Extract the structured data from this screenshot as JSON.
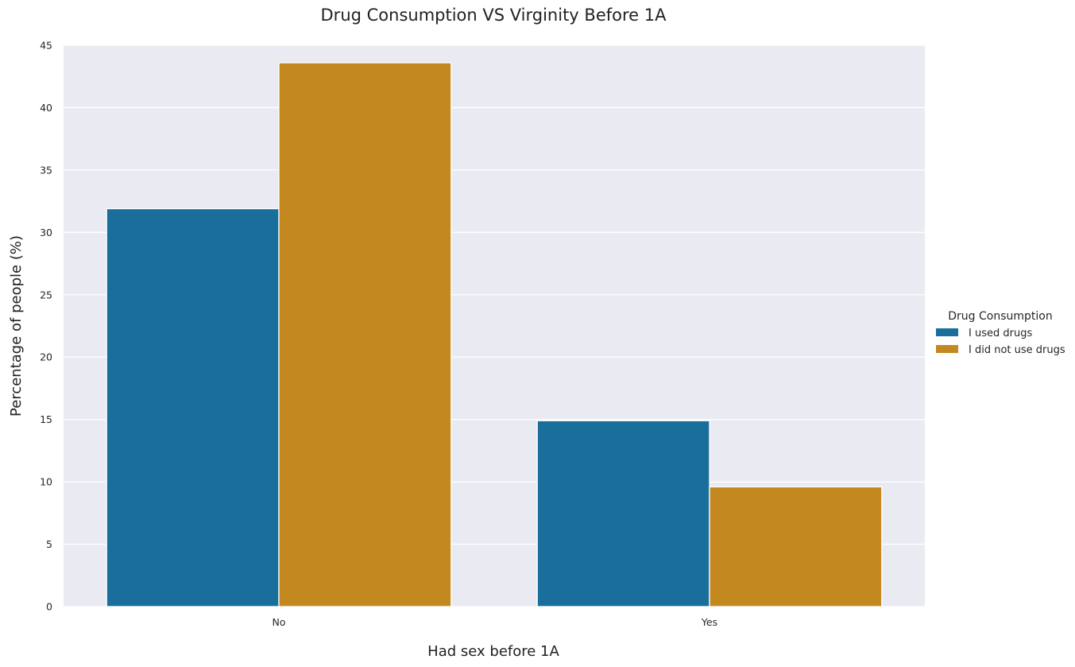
{
  "chart_data": {
    "type": "bar",
    "title": "Drug Consumption VS Virginity Before 1A",
    "xlabel": "Had sex before 1A",
    "ylabel": "Percentage of people (%)",
    "categories": [
      "No",
      "Yes"
    ],
    "series": [
      {
        "name": "I used drugs",
        "values": [
          31.9,
          14.9
        ],
        "color": "#1a6e9c"
      },
      {
        "name": "I did not use drugs",
        "values": [
          43.6,
          9.6
        ],
        "color": "#c38820"
      }
    ],
    "ylim": [
      0,
      45
    ],
    "yticks": [
      0,
      5,
      10,
      15,
      20,
      25,
      30,
      35,
      40,
      45
    ],
    "legend": {
      "title": "Drug Consumption",
      "placement": "right"
    },
    "grid": true,
    "background": "#eaeaf2"
  }
}
